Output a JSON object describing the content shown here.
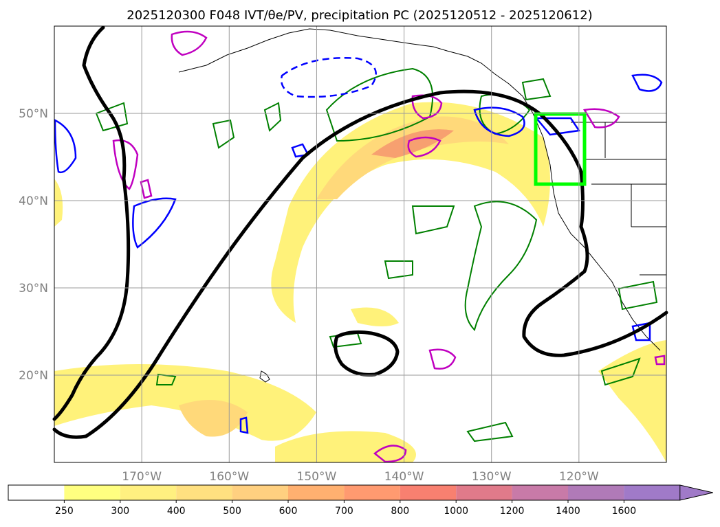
{
  "chart_data": {
    "type": "heatmap",
    "title": "2025120300 F048 IVT/θe/PV, precipitation PC (2025120512 - 2025120612)",
    "lat_ticks": [
      {
        "lat": 50,
        "label": "50°N"
      },
      {
        "lat": 40,
        "label": "40°N"
      },
      {
        "lat": 30,
        "label": "30°N"
      },
      {
        "lat": 20,
        "label": "20°N"
      }
    ],
    "lon_ticks": [
      {
        "lon": -170,
        "label": "170°W"
      },
      {
        "lon": -160,
        "label": "160°W"
      },
      {
        "lon": -150,
        "label": "150°W"
      },
      {
        "lon": -140,
        "label": "140°W"
      },
      {
        "lon": -130,
        "label": "130°W"
      },
      {
        "lon": -120,
        "label": "120°W"
      }
    ],
    "extent": {
      "lon": [
        -180,
        -110
      ],
      "lat": [
        10,
        60
      ]
    },
    "grid": true,
    "colorbar": {
      "levels": [
        250,
        300,
        400,
        500,
        600,
        700,
        800,
        1000,
        1200,
        1400,
        1600
      ],
      "colors": [
        "#ffffff",
        "#ffff80",
        "#fff080",
        "#ffe080",
        "#ffd080",
        "#ffb070",
        "#ff9a70",
        "#f88070",
        "#e07a8a",
        "#c87aa8",
        "#b07ab8",
        "#a07ac8"
      ],
      "extend": "max"
    },
    "highlight_box": {
      "lon": [
        -125,
        -119
      ],
      "lat": [
        42,
        50
      ],
      "color": "#00ff00"
    },
    "series_colors": {
      "ivt_shading": "#ffd080",
      "theta_e": "#000000",
      "pv": "#0000ff",
      "precip": "#008000",
      "other": "#c000c0"
    }
  }
}
